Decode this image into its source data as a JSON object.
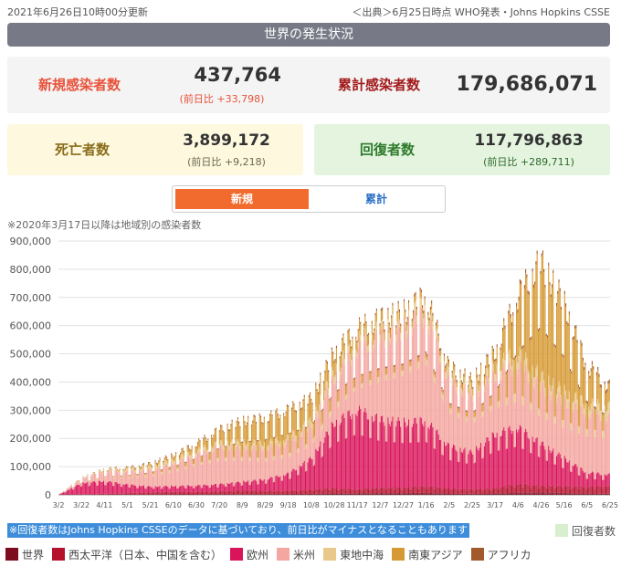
{
  "header": {
    "updated": "2021年6月26日10時00分更新",
    "source": "＜出典＞6月25日時点 WHO発表・Johns Hopkins CSSE"
  },
  "section_title": "世界の発生状況",
  "stats": {
    "new_cases": {
      "label": "新規感染者数",
      "value": "437,764",
      "diff": "(前日比 +33,798)"
    },
    "total_cases": {
      "label": "累計感染者数",
      "value": "179,686,071"
    },
    "deaths": {
      "label": "死亡者数",
      "value": "3,899,172",
      "diff": "(前日比 +9,218)"
    },
    "recovered": {
      "label": "回復者数",
      "value": "117,796,863",
      "diff": "(前日比 +289,711)"
    }
  },
  "toggle": {
    "new_label": "新規",
    "total_label": "累計"
  },
  "note_top": "※2020年3月17日以降は地域別の感染者数",
  "note_bottom": "※回復者数はJohns Hopkins CSSEのデータに基づいており、前日比がマイナスとなることもあります",
  "colors": {
    "world": "#7b0d1e",
    "west_pacific": "#b5112d",
    "europe": "#d9145a",
    "americas": "#f4a6a0",
    "east_med": "#e9c98b",
    "se_asia": "#d69a35",
    "africa": "#a05a2c",
    "recovered": "#d7efcf",
    "header_bg": "#777a86",
    "new_tab": "#f26b2e",
    "label_red": "#e8523a",
    "label_dark_red": "#a21a1a",
    "label_olive": "#8a6d1a",
    "label_green": "#2e7a2c"
  },
  "chart_data": {
    "type": "bar",
    "stacked": true,
    "x_ticks": [
      "3/2",
      "3/22",
      "4/11",
      "5/1",
      "5/21",
      "6/10",
      "6/30",
      "7/20",
      "8/9",
      "8/29",
      "9/18",
      "10/8",
      "10/28",
      "11/17",
      "12/7",
      "12/27",
      "1/16",
      "2/5",
      "2/25",
      "3/17",
      "4/6",
      "4/26",
      "5/16",
      "6/5",
      "6/25"
    ],
    "y_ticks": [
      "0",
      "100,000",
      "200,000",
      "300,000",
      "400,000",
      "500,000",
      "600,000",
      "700,000",
      "800,000",
      "900,000"
    ],
    "ylim": [
      0,
      900000
    ],
    "grid": true,
    "series": [
      {
        "name": "世界",
        "color_key": "world"
      },
      {
        "name": "西太平洋（日本、中国を含む）",
        "color_key": "west_pacific"
      },
      {
        "name": "欧州",
        "color_key": "europe"
      },
      {
        "name": "米州",
        "color_key": "americas"
      },
      {
        "name": "東地中海",
        "color_key": "east_med"
      },
      {
        "name": "南東アジア",
        "color_key": "se_asia"
      },
      {
        "name": "アフリカ",
        "color_key": "africa"
      }
    ],
    "recovered_legend": "回復者数",
    "weekly_total_estimates": [
      {
        "date": "3/2",
        "total": 2000,
        "europe": 0,
        "americas": 0,
        "se_asia": 0
      },
      {
        "date": "3/22",
        "total": 60000,
        "europe": 40000,
        "americas": 15000,
        "se_asia": 500
      },
      {
        "date": "4/11",
        "total": 90000,
        "europe": 45000,
        "americas": 35000,
        "se_asia": 2000
      },
      {
        "date": "5/1",
        "total": 95000,
        "europe": 30000,
        "americas": 45000,
        "se_asia": 4000
      },
      {
        "date": "5/21",
        "total": 110000,
        "europe": 20000,
        "americas": 60000,
        "se_asia": 7000
      },
      {
        "date": "6/10",
        "total": 140000,
        "europe": 20000,
        "americas": 80000,
        "se_asia": 12000
      },
      {
        "date": "6/30",
        "total": 180000,
        "europe": 22000,
        "americas": 110000,
        "se_asia": 22000
      },
      {
        "date": "7/20",
        "total": 230000,
        "europe": 25000,
        "americas": 130000,
        "se_asia": 45000
      },
      {
        "date": "8/9",
        "total": 260000,
        "europe": 30000,
        "americas": 120000,
        "se_asia": 70000
      },
      {
        "date": "8/29",
        "total": 270000,
        "europe": 40000,
        "americas": 110000,
        "se_asia": 85000
      },
      {
        "date": "9/18",
        "total": 300000,
        "europe": 60000,
        "americas": 110000,
        "se_asia": 95000
      },
      {
        "date": "10/8",
        "total": 340000,
        "europe": 110000,
        "americas": 110000,
        "se_asia": 75000
      },
      {
        "date": "10/28",
        "total": 500000,
        "europe": 230000,
        "americas": 160000,
        "se_asia": 55000
      },
      {
        "date": "11/17",
        "total": 580000,
        "europe": 280000,
        "americas": 220000,
        "se_asia": 40000
      },
      {
        "date": "12/7",
        "total": 620000,
        "europe": 240000,
        "americas": 290000,
        "se_asia": 35000
      },
      {
        "date": "12/27",
        "total": 640000,
        "europe": 230000,
        "americas": 330000,
        "se_asia": 25000
      },
      {
        "date": "1/16",
        "total": 700000,
        "europe": 230000,
        "americas": 380000,
        "se_asia": 20000
      },
      {
        "date": "2/5",
        "total": 450000,
        "europe": 150000,
        "americas": 230000,
        "se_asia": 18000
      },
      {
        "date": "2/25",
        "total": 400000,
        "europe": 130000,
        "americas": 200000,
        "se_asia": 25000
      },
      {
        "date": "3/17",
        "total": 500000,
        "europe": 190000,
        "americas": 210000,
        "se_asia": 45000
      },
      {
        "date": "4/6",
        "total": 700000,
        "europe": 200000,
        "americas": 220000,
        "se_asia": 190000
      },
      {
        "date": "4/26",
        "total": 820000,
        "europe": 150000,
        "americas": 200000,
        "se_asia": 400000
      },
      {
        "date": "5/16",
        "total": 680000,
        "europe": 100000,
        "americas": 200000,
        "se_asia": 310000
      },
      {
        "date": "6/5",
        "total": 460000,
        "europe": 50000,
        "americas": 210000,
        "se_asia": 130000
      },
      {
        "date": "6/25",
        "total": 380000,
        "europe": 40000,
        "americas": 200000,
        "se_asia": 60000
      }
    ]
  }
}
